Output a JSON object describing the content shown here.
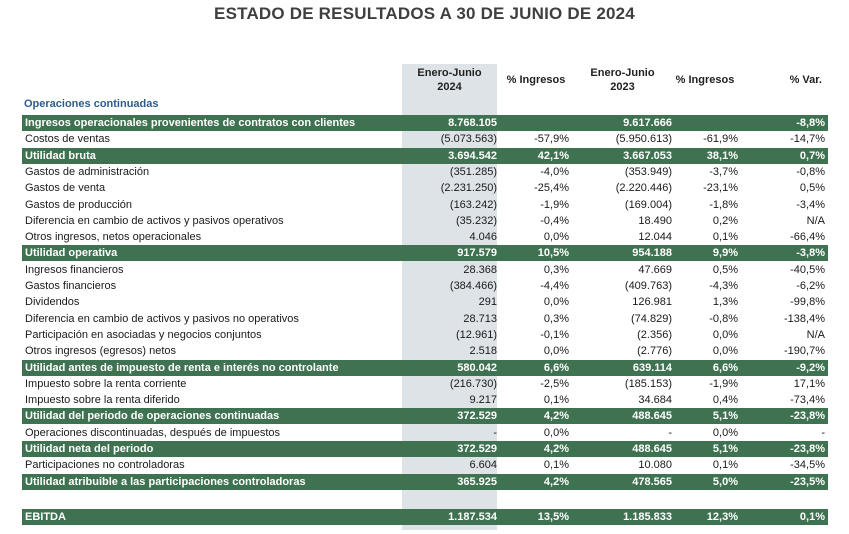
{
  "title": "ESTADO DE RESULTADOS A 30 DE JUNIO DE 2024",
  "headers": {
    "col1_line1": "Enero-Junio",
    "col1_line2": "2024",
    "col2": "% Ingresos",
    "col3_line1": "Enero-Junio",
    "col3_line2": "2023",
    "col4": "% Ingresos",
    "col5": "% Var."
  },
  "section_label": "Operaciones continuadas",
  "rows": [
    {
      "label": "Ingresos operacionales provenientes de contratos con clientes",
      "v2024": "8.768.105",
      "p2024": "",
      "v2023": "9.617.666",
      "p2023": "",
      "var": "-8,8%",
      "highlight": true
    },
    {
      "label": "Costos de ventas",
      "v2024": "(5.073.563)",
      "p2024": "-57,9%",
      "v2023": "(5.950.613)",
      "p2023": "-61,9%",
      "var": "-14,7%",
      "highlight": false
    },
    {
      "label": "Utilidad bruta",
      "v2024": "3.694.542",
      "p2024": "42,1%",
      "v2023": "3.667.053",
      "p2023": "38,1%",
      "var": "0,7%",
      "highlight": true
    },
    {
      "label": "Gastos de administración",
      "v2024": "(351.285)",
      "p2024": "-4,0%",
      "v2023": "(353.949)",
      "p2023": "-3,7%",
      "var": "-0,8%",
      "highlight": false
    },
    {
      "label": "Gastos de venta",
      "v2024": "(2.231.250)",
      "p2024": "-25,4%",
      "v2023": "(2.220.446)",
      "p2023": "-23,1%",
      "var": "0,5%",
      "highlight": false
    },
    {
      "label": "Gastos de producción",
      "v2024": "(163.242)",
      "p2024": "-1,9%",
      "v2023": "(169.004)",
      "p2023": "-1,8%",
      "var": "-3,4%",
      "highlight": false
    },
    {
      "label": "Diferencia en cambio de activos y pasivos operativos",
      "v2024": "(35.232)",
      "p2024": "-0,4%",
      "v2023": "18.490",
      "p2023": "0,2%",
      "var": "N/A",
      "highlight": false
    },
    {
      "label": "Otros ingresos, netos operacionales",
      "v2024": "4.046",
      "p2024": "0,0%",
      "v2023": "12.044",
      "p2023": "0,1%",
      "var": "-66,4%",
      "highlight": false
    },
    {
      "label": "Utilidad operativa",
      "v2024": "917.579",
      "p2024": "10,5%",
      "v2023": "954.188",
      "p2023": "9,9%",
      "var": "-3,8%",
      "highlight": true
    },
    {
      "label": "Ingresos financieros",
      "v2024": "28.368",
      "p2024": "0,3%",
      "v2023": "47.669",
      "p2023": "0,5%",
      "var": "-40,5%",
      "highlight": false
    },
    {
      "label": "Gastos financieros",
      "v2024": "(384.466)",
      "p2024": "-4,4%",
      "v2023": "(409.763)",
      "p2023": "-4,3%",
      "var": "-6,2%",
      "highlight": false
    },
    {
      "label": "Dividendos",
      "v2024": "291",
      "p2024": "0,0%",
      "v2023": "126.981",
      "p2023": "1,3%",
      "var": "-99,8%",
      "highlight": false
    },
    {
      "label": "Diferencia en cambio de activos y pasivos no operativos",
      "v2024": "28.713",
      "p2024": "0,3%",
      "v2023": "(74.829)",
      "p2023": "-0,8%",
      "var": "-138,4%",
      "highlight": false
    },
    {
      "label": "Participación en asociadas y negocios conjuntos",
      "v2024": "(12.961)",
      "p2024": "-0,1%",
      "v2023": "(2.356)",
      "p2023": "0,0%",
      "var": "N/A",
      "highlight": false
    },
    {
      "label": "Otros ingresos (egresos) netos",
      "v2024": "2.518",
      "p2024": "0,0%",
      "v2023": "(2.776)",
      "p2023": "0,0%",
      "var": "-190,7%",
      "highlight": false
    },
    {
      "label": "Utilidad antes de impuesto de renta e interés no controlante",
      "v2024": "580.042",
      "p2024": "6,6%",
      "v2023": "639.114",
      "p2023": "6,6%",
      "var": "-9,2%",
      "highlight": true
    },
    {
      "label": "Impuesto sobre la renta corriente",
      "v2024": "(216.730)",
      "p2024": "-2,5%",
      "v2023": "(185.153)",
      "p2023": "-1,9%",
      "var": "17,1%",
      "highlight": false
    },
    {
      "label": "Impuesto sobre la renta diferido",
      "v2024": "9.217",
      "p2024": "0,1%",
      "v2023": "34.684",
      "p2023": "0,4%",
      "var": "-73,4%",
      "highlight": false
    },
    {
      "label": "Utilidad del periodo de operaciones continuadas",
      "v2024": "372.529",
      "p2024": "4,2%",
      "v2023": "488.645",
      "p2023": "5,1%",
      "var": "-23,8%",
      "highlight": true
    },
    {
      "label": "Operaciones discontinuadas, después de impuestos",
      "v2024": "-",
      "p2024": "0,0%",
      "v2023": "-",
      "p2023": "0,0%",
      "var": "-",
      "highlight": false
    },
    {
      "label": "Utilidad neta del periodo",
      "v2024": "372.529",
      "p2024": "4,2%",
      "v2023": "488.645",
      "p2023": "5,1%",
      "var": "-23,8%",
      "highlight": true
    },
    {
      "label": "Participaciones no controladoras",
      "v2024": "6.604",
      "p2024": "0,1%",
      "v2023": "10.080",
      "p2023": "0,1%",
      "var": "-34,5%",
      "highlight": false
    },
    {
      "label": "Utilidad atribuible a las participaciones controladoras",
      "v2024": "365.925",
      "p2024": "4,2%",
      "v2023": "478.565",
      "p2023": "5,0%",
      "var": "-23,5%",
      "highlight": true
    }
  ],
  "ebitda": {
    "label": "EBITDA",
    "v2024": "1.187.534",
    "p2024": "13,5%",
    "v2023": "1.185.833",
    "p2023": "12,3%",
    "var": "0,1%"
  },
  "colors": {
    "highlight": "#3f7250",
    "shade": "#dde3e6",
    "section": "#2f5d8a"
  }
}
